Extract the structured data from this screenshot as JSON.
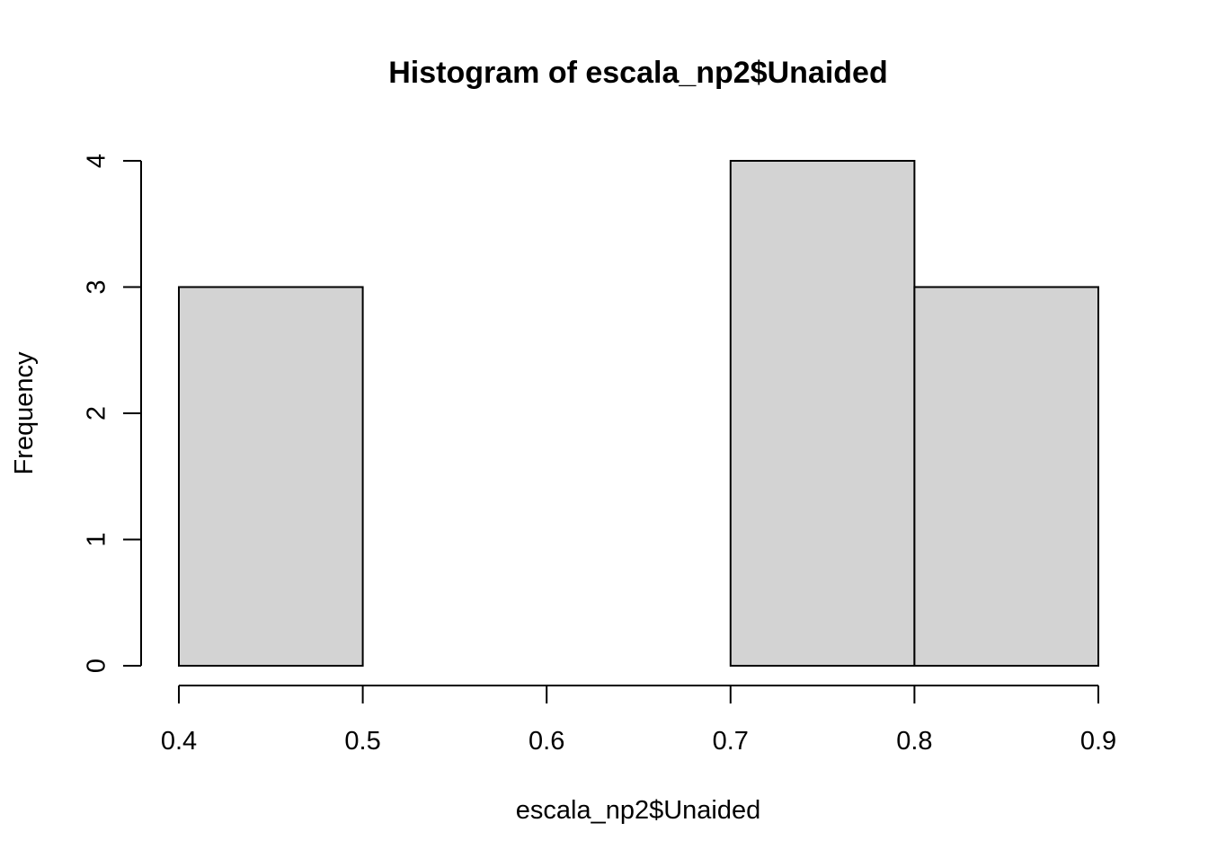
{
  "chart_data": {
    "type": "bar",
    "title": "Histogram of escala_np2$Unaided",
    "xlabel": "escala_np2$Unaided",
    "ylabel": "Frequency",
    "bins": [
      {
        "start": 0.4,
        "end": 0.5,
        "count": 3
      },
      {
        "start": 0.5,
        "end": 0.6,
        "count": 0
      },
      {
        "start": 0.6,
        "end": 0.7,
        "count": 0
      },
      {
        "start": 0.7,
        "end": 0.8,
        "count": 4
      },
      {
        "start": 0.8,
        "end": 0.9,
        "count": 3
      }
    ],
    "xlim": [
      0.4,
      0.9
    ],
    "ylim": [
      0,
      4
    ],
    "xticks": [
      "0.4",
      "0.5",
      "0.6",
      "0.7",
      "0.8",
      "0.9"
    ],
    "yticks": [
      "0",
      "1",
      "2",
      "3",
      "4"
    ],
    "grid": false,
    "bar_fill": "#d3d3d3",
    "bar_stroke": "#000000"
  }
}
